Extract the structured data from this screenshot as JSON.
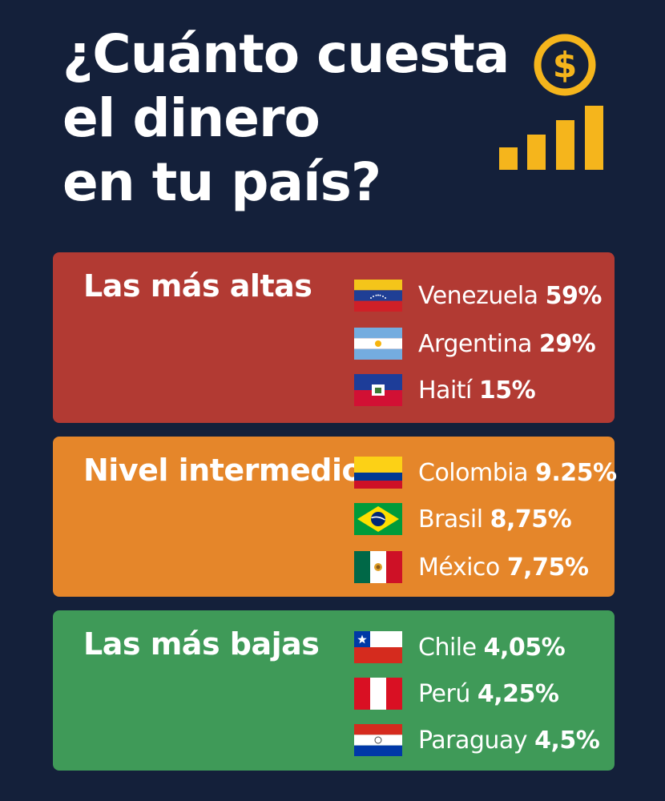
{
  "title": {
    "lines": [
      "¿Cuánto cuesta",
      "el dinero",
      "en tu país?"
    ]
  },
  "icon": {
    "name": "dollar-coin-rising-bars-icon",
    "color": "#f5b51c"
  },
  "groups": [
    {
      "title": "Las más altas",
      "color": "#b23a33",
      "countries": [
        {
          "name": "Venezuela",
          "rate": "59%",
          "flag": "venezuela-flag-icon"
        },
        {
          "name": "Argentina",
          "rate": "29%",
          "flag": "argentina-flag-icon"
        },
        {
          "name": "Haití",
          "rate": "15%",
          "flag": "haiti-flag-icon"
        }
      ]
    },
    {
      "title": "Nivel intermedio",
      "color": "#e5862a",
      "countries": [
        {
          "name": "Colombia",
          "rate": "9.25%",
          "flag": "colombia-flag-icon"
        },
        {
          "name": "Brasil",
          "rate": "8,75%",
          "flag": "brazil-flag-icon"
        },
        {
          "name": "México",
          "rate": "7,75%",
          "flag": "mexico-flag-icon"
        }
      ]
    },
    {
      "title": "Las más bajas",
      "color": "#3f9a58",
      "countries": [
        {
          "name": "Chile",
          "rate": "4,05%",
          "flag": "chile-flag-icon"
        },
        {
          "name": "Perú",
          "rate": "4,25%",
          "flag": "peru-flag-icon"
        },
        {
          "name": "Paraguay",
          "rate": "4,5%",
          "flag": "paraguay-flag-icon"
        }
      ]
    }
  ]
}
